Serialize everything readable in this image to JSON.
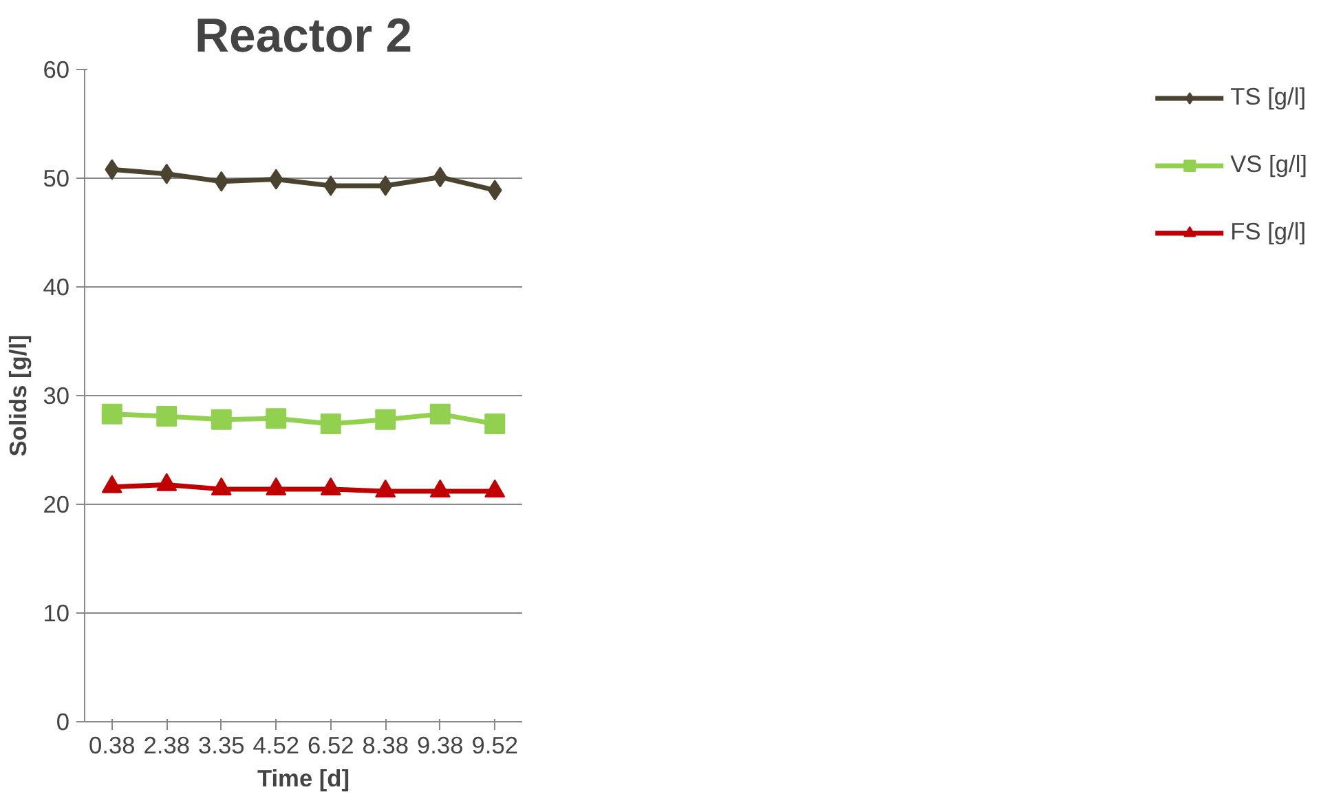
{
  "chart_data": {
    "type": "line",
    "title": "Reactor 2",
    "xlabel": "Time [d]",
    "ylabel": "Solids [g/l]",
    "categories": [
      "0.38",
      "2.38",
      "3.35",
      "4.52",
      "6.52",
      "8.38",
      "9.38",
      "9.52"
    ],
    "series": [
      {
        "name": "TS [g/l]",
        "color": "#4a4330",
        "marker": "diamond",
        "values": [
          50.8,
          50.4,
          49.7,
          49.9,
          49.3,
          49.3,
          50.1,
          48.9
        ]
      },
      {
        "name": "VS [g/l]",
        "color": "#92d050",
        "marker": "square",
        "values": [
          28.3,
          28.1,
          27.8,
          27.9,
          27.4,
          27.8,
          28.3,
          27.4
        ]
      },
      {
        "name": "FS [g/l]",
        "color": "#c00000",
        "marker": "triangle",
        "values": [
          21.6,
          21.8,
          21.4,
          21.4,
          21.4,
          21.2,
          21.2,
          21.2
        ]
      }
    ],
    "ylim": [
      0,
      60
    ],
    "yticks": [
      0,
      10,
      20,
      30,
      40,
      50,
      60
    ],
    "grid": "y",
    "legend": "right",
    "line_style": "solid"
  }
}
